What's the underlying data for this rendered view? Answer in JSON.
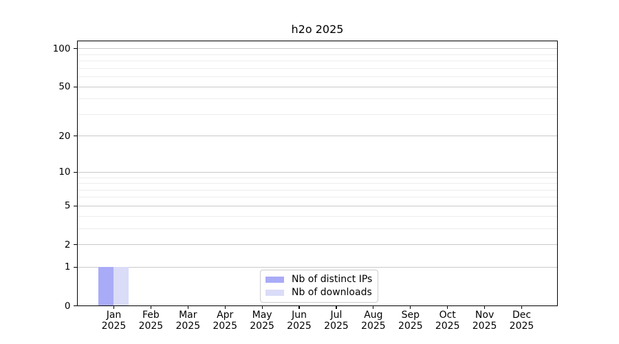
{
  "colors": {
    "bar_distinct_ips": "#a9abf7",
    "bar_downloads": "#dadcf8",
    "grid_major": "#c9c9c9",
    "grid_minor": "#ededed",
    "axis_frame": "#000000",
    "legend_border": "#cccccc",
    "text": "#000000"
  },
  "chart_data": {
    "type": "bar",
    "title": "h2o 2025",
    "x_categories": [
      {
        "month": "Jan",
        "year": "2025"
      },
      {
        "month": "Feb",
        "year": "2025"
      },
      {
        "month": "Mar",
        "year": "2025"
      },
      {
        "month": "Apr",
        "year": "2025"
      },
      {
        "month": "May",
        "year": "2025"
      },
      {
        "month": "Jun",
        "year": "2025"
      },
      {
        "month": "Jul",
        "year": "2025"
      },
      {
        "month": "Aug",
        "year": "2025"
      },
      {
        "month": "Sep",
        "year": "2025"
      },
      {
        "month": "Oct",
        "year": "2025"
      },
      {
        "month": "Nov",
        "year": "2025"
      },
      {
        "month": "Dec",
        "year": "2025"
      }
    ],
    "series": [
      {
        "name": "Nb of distinct IPs",
        "color": "#a9abf7",
        "values": [
          1,
          0,
          0,
          0,
          0,
          0,
          0,
          0,
          0,
          0,
          0,
          0
        ]
      },
      {
        "name": "Nb of downloads",
        "color": "#dadcf8",
        "values": [
          1,
          0,
          0,
          0,
          0,
          0,
          0,
          0,
          0,
          0,
          0,
          0
        ]
      }
    ],
    "y_scale": "log1p",
    "y_axis": {
      "major_ticks": [
        0,
        1,
        2,
        5,
        10,
        20,
        50,
        100
      ],
      "minor_ticks": [
        3,
        4,
        6,
        7,
        8,
        9,
        30,
        40,
        60,
        70,
        80,
        90
      ],
      "min": 0,
      "max": 113.6
    },
    "grid": "horizontal",
    "legend_position": "lower center"
  }
}
